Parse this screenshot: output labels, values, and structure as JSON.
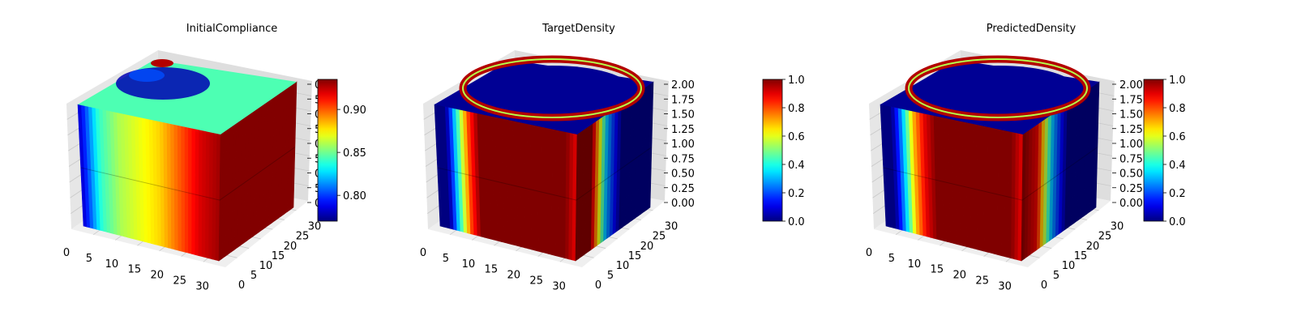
{
  "chart_data": [
    {
      "type": "heatmap",
      "subtype": "3d-voxel",
      "title": "InitialCompliance",
      "x_ticks": [
        "0",
        "5",
        "10",
        "15",
        "20",
        "25",
        "30"
      ],
      "y_ticks": [
        "0",
        "5",
        "10",
        "15",
        "20",
        "25",
        "30"
      ],
      "z_ticks": [
        "0",
        "5",
        "0",
        "5",
        "0",
        "5",
        "0",
        "5",
        "0"
      ],
      "colorbar": {
        "cmap": "jet",
        "range": [
          0.77,
          0.935
        ],
        "ticks": [
          "0.80",
          "0.85",
          "0.90"
        ]
      },
      "face_profile": {
        "front": [
          0.78,
          0.84,
          0.86,
          0.87,
          0.88,
          0.9,
          0.92,
          0.93
        ],
        "right": [
          0.93,
          0.93
        ]
      }
    },
    {
      "type": "heatmap",
      "subtype": "3d-voxel",
      "title": "TargetDensity",
      "x_ticks": [
        "0",
        "5",
        "10",
        "15",
        "20",
        "25",
        "30"
      ],
      "y_ticks": [
        "0",
        "5",
        "10",
        "15",
        "20",
        "25",
        "30"
      ],
      "z_ticks": [
        "0.00",
        "0.25",
        "0.50",
        "0.75",
        "1.00",
        "1.25",
        "1.50",
        "1.75",
        "2.00"
      ],
      "colorbar": {
        "cmap": "jet",
        "range": [
          0.0,
          1.0
        ],
        "ticks": [
          "0.0",
          "0.2",
          "0.4",
          "0.6",
          "0.8",
          "1.0"
        ]
      },
      "face_profile": {
        "front": [
          0.0,
          0.0,
          0.4,
          0.8,
          1.0,
          1.0,
          1.0,
          1.0,
          1.0,
          1.0,
          1.0,
          1.0,
          1.0,
          0.9
        ],
        "right": [
          1.0,
          1.0,
          0.3,
          0.0,
          0.0,
          0.0
        ]
      }
    },
    {
      "type": "heatmap",
      "subtype": "3d-voxel",
      "title": "PredictedDensity",
      "x_ticks": [
        "0",
        "5",
        "10",
        "15",
        "20",
        "25",
        "30"
      ],
      "y_ticks": [
        "0",
        "5",
        "10",
        "15",
        "20",
        "25",
        "30"
      ],
      "z_ticks": [
        "0.00",
        "0.25",
        "0.50",
        "0.75",
        "1.00",
        "1.25",
        "1.50",
        "1.75",
        "2.00"
      ],
      "colorbar": {
        "cmap": "jet",
        "range": [
          0.0,
          1.0
        ],
        "ticks": [
          "0.0",
          "0.2",
          "0.4",
          "0.6",
          "0.8",
          "1.0"
        ]
      },
      "face_profile": {
        "front": [
          0.0,
          0.0,
          0.3,
          0.7,
          0.9,
          1.0,
          1.0,
          1.0,
          1.0,
          1.0,
          1.0,
          1.0,
          1.0,
          0.9
        ],
        "right": [
          1.0,
          0.9,
          0.3,
          0.0,
          0.0,
          0.0
        ]
      }
    }
  ]
}
